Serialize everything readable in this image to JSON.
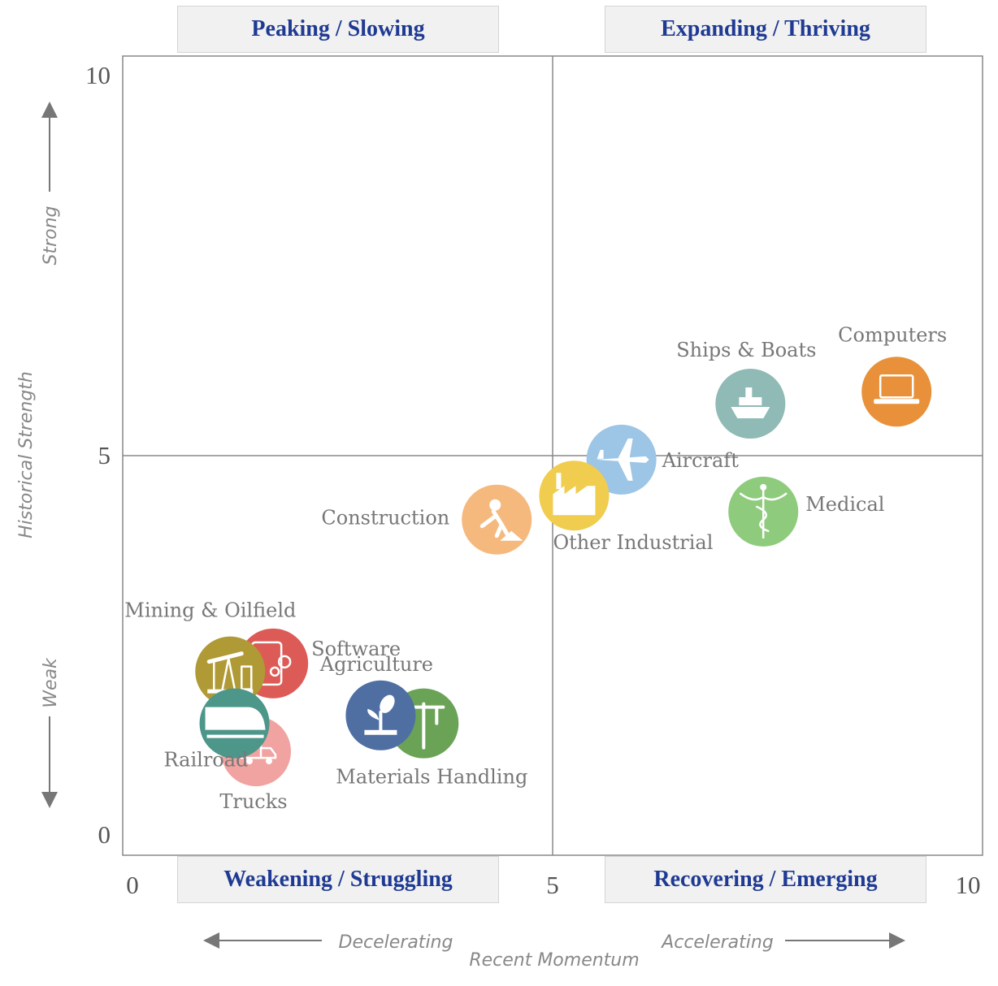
{
  "quadrants": {
    "top_left": "Peaking / Slowing",
    "top_right": "Expanding / Thriving",
    "bottom_left": "Weakening / Struggling",
    "bottom_right": "Recovering / Emerging"
  },
  "chart_data": {
    "type": "scatter",
    "title": "",
    "xlabel": "Recent Momentum",
    "ylabel": "Historical Strength",
    "xlim": [
      0,
      10
    ],
    "ylim": [
      0,
      10
    ],
    "x_ticks": [
      "0",
      "5",
      "10"
    ],
    "y_ticks": [
      "0",
      "5",
      "10"
    ],
    "x_hints": {
      "left": "Decelerating",
      "right": "Accelerating"
    },
    "y_hints": {
      "top": "Strong",
      "bottom": "Weak"
    },
    "points": [
      {
        "name": "Computers",
        "x": 9.0,
        "y": 5.8,
        "color": "#e8913a",
        "icon": "laptop-icon"
      },
      {
        "name": "Ships & Boats",
        "x": 7.3,
        "y": 5.65,
        "color": "#8fbab5",
        "icon": "ship-icon"
      },
      {
        "name": "Aircraft",
        "x": 5.8,
        "y": 4.95,
        "color": "#9cc5e6",
        "icon": "airplane-icon"
      },
      {
        "name": "Medical",
        "x": 7.45,
        "y": 4.3,
        "color": "#8fcb7d",
        "icon": "caduceus-icon"
      },
      {
        "name": "Other Industrial",
        "x": 5.25,
        "y": 4.5,
        "color": "#f0cc4f",
        "icon": "factory-icon"
      },
      {
        "name": "Construction",
        "x": 4.35,
        "y": 4.2,
        "color": "#f5b97e",
        "icon": "construction-worker-icon"
      },
      {
        "name": "Software",
        "x": 1.75,
        "y": 2.4,
        "color": "#dd5b56",
        "icon": "tablet-gears-icon"
      },
      {
        "name": "Mining & Oilfield",
        "x": 1.25,
        "y": 2.3,
        "color": "#b09a36",
        "icon": "pumpjack-icon"
      },
      {
        "name": "Materials Handling",
        "x": 3.5,
        "y": 1.65,
        "color": "#6aa356",
        "icon": "crane-icon"
      },
      {
        "name": "Agriculture",
        "x": 3.0,
        "y": 1.75,
        "color": "#4f6fa3",
        "icon": "plant-icon"
      },
      {
        "name": "Trucks",
        "x": 1.55,
        "y": 1.3,
        "color": "#f0a3a0",
        "icon": "truck-icon"
      },
      {
        "name": "Railroad",
        "x": 1.3,
        "y": 1.65,
        "color": "#4d968a",
        "icon": "train-icon"
      }
    ]
  }
}
